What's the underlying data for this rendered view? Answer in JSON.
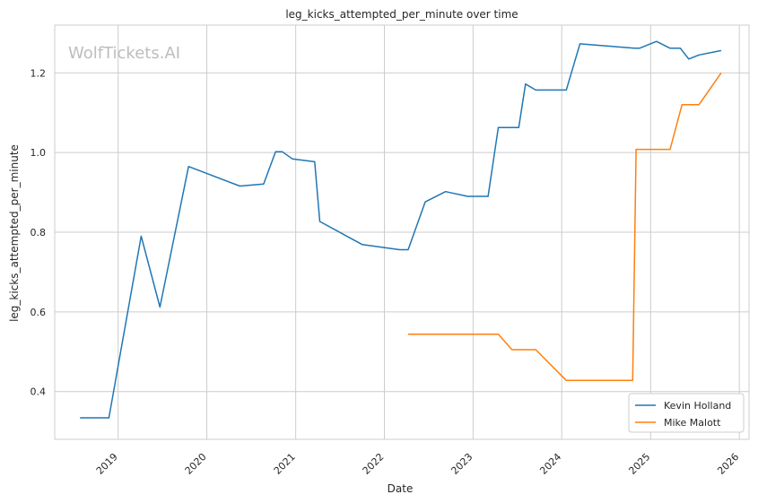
{
  "chart_data": {
    "type": "line",
    "title": "leg_kicks_attempted_per_minute over time",
    "xlabel": "Date",
    "ylabel": "leg_kicks_attempted_per_minute",
    "watermark": "WolfTickets.AI",
    "x_axis_type": "date",
    "xlim": [
      "2018-04-15",
      "2026-02-10"
    ],
    "ylim": [
      0.28,
      1.32
    ],
    "x_ticks": [
      "2019",
      "2020",
      "2021",
      "2022",
      "2023",
      "2024",
      "2025",
      "2026"
    ],
    "y_ticks": [
      "0.4",
      "0.6",
      "0.8",
      "1.0",
      "1.2"
    ],
    "grid": true,
    "legend_position": "lower-right",
    "series": [
      {
        "name": "Kevin Holland",
        "color": "#1f77b4",
        "x": [
          "2018-07-28",
          "2018-11-24",
          "2019-04-06",
          "2019-06-22",
          "2019-10-18",
          "2020-05-16",
          "2020-08-22",
          "2020-10-10",
          "2020-11-07",
          "2020-12-19",
          "2021-03-20",
          "2021-04-10",
          "2021-10-02",
          "2022-03-05",
          "2022-04-09",
          "2022-06-18",
          "2022-09-10",
          "2022-12-10",
          "2023-03-04",
          "2023-04-15",
          "2023-07-08",
          "2023-08-05",
          "2023-09-16",
          "2024-01-20",
          "2024-03-16",
          "2024-10-26",
          "2024-11-16",
          "2025-01-25",
          "2025-03-22",
          "2025-05-03",
          "2025-06-07",
          "2025-07-19",
          "2025-10-18"
        ],
        "values": [
          0.334,
          0.334,
          0.79,
          0.612,
          0.965,
          0.916,
          0.921,
          1.002,
          1.002,
          0.984,
          0.977,
          0.827,
          0.769,
          0.756,
          0.756,
          0.876,
          0.902,
          0.89,
          0.89,
          1.063,
          1.063,
          1.172,
          1.157,
          1.157,
          1.273,
          1.262,
          1.262,
          1.279,
          1.262,
          1.262,
          1.235,
          1.245,
          1.256
        ]
      },
      {
        "name": "Mike Malott",
        "color": "#ff7f0e",
        "x": [
          "2022-04-09",
          "2023-04-15",
          "2023-06-10",
          "2023-09-16",
          "2024-01-20",
          "2024-10-19",
          "2024-11-02",
          "2025-03-22",
          "2025-05-10",
          "2025-07-19",
          "2025-10-18"
        ],
        "values": [
          0.544,
          0.544,
          0.505,
          0.505,
          0.428,
          0.428,
          1.008,
          1.008,
          1.12,
          1.12,
          1.2
        ]
      }
    ]
  }
}
